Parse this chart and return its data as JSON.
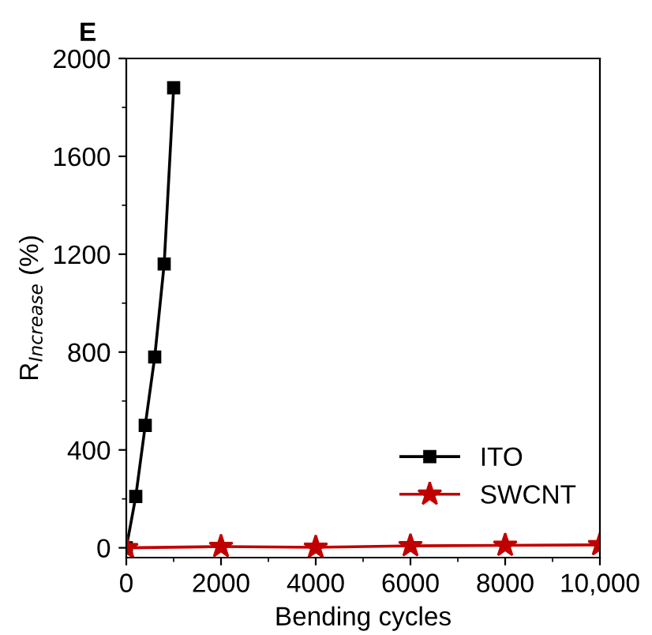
{
  "chart_data": {
    "type": "line",
    "title": "E",
    "xlabel": "Bending cycles",
    "ylabel": "R$_{Increase}$ (%)",
    "series": [
      {
        "name": "ITO",
        "color": "#000000",
        "marker": "square",
        "x": [
          0,
          200,
          400,
          600,
          800,
          1000
        ],
        "values": [
          0,
          210,
          500,
          780,
          1160,
          1880
        ]
      },
      {
        "name": "SWCNT",
        "color": "#c00000",
        "marker": "star",
        "x": [
          0,
          2000,
          4000,
          6000,
          8000,
          10000
        ],
        "values": [
          0,
          5,
          2,
          8,
          10,
          12
        ]
      }
    ],
    "xlim": [
      0,
      10000
    ],
    "xticks": [
      0,
      2000,
      4000,
      6000,
      8000,
      {
        "value": 10000,
        "label": "10,000"
      }
    ],
    "ylim": [
      -40,
      2000
    ],
    "yticks": [
      0,
      400,
      800,
      1200,
      1600,
      2000
    ],
    "grid": false,
    "legend": "bottom right",
    "line_style": "solid"
  }
}
